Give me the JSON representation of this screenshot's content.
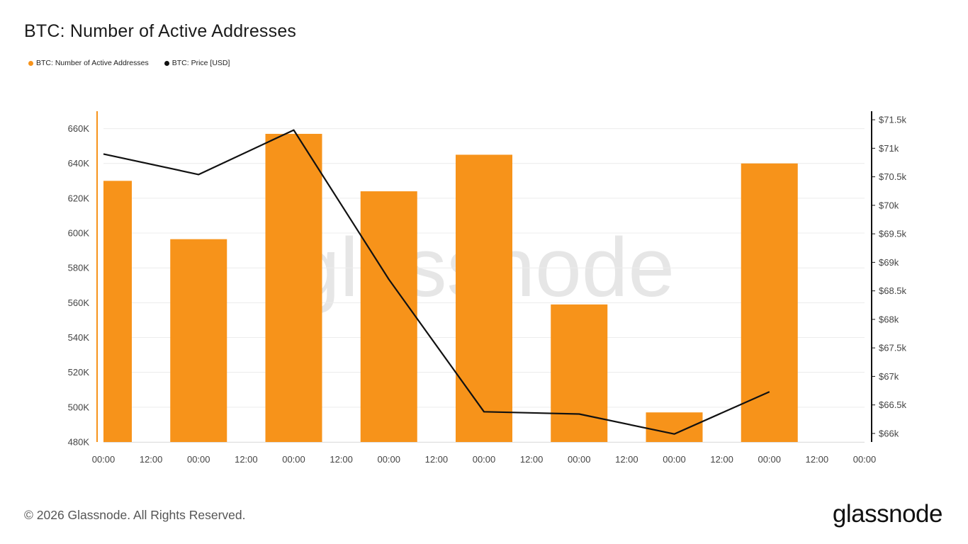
{
  "title": "BTC: Number of Active Addresses",
  "legend": [
    {
      "label": "BTC: Number of Active Addresses",
      "color": "#f7931a"
    },
    {
      "label": "BTC: Price [USD]",
      "color": "#111111"
    }
  ],
  "footer": {
    "copyright": "© 2026 Glassnode. All Rights Reserved.",
    "logo": "glassnode"
  },
  "watermark": "glassnode",
  "colors": {
    "bar": "#f7931a",
    "line": "#111111",
    "grid": "#ececec"
  },
  "chart_data": {
    "type": "bar",
    "x_tick_labels": [
      "00:00",
      "12:00",
      "00:00",
      "12:00",
      "00:00",
      "12:00",
      "00:00",
      "12:00",
      "00:00",
      "12:00",
      "00:00",
      "12:00",
      "00:00",
      "12:00",
      "00:00",
      "12:00",
      "00:00"
    ],
    "y_left_ticks": [
      "480K",
      "500K",
      "520K",
      "540K",
      "560K",
      "580K",
      "600K",
      "620K",
      "640K",
      "660K"
    ],
    "y_right_ticks": [
      "$66k",
      "$66.5k",
      "$67k",
      "$67.5k",
      "$68k",
      "$68.5k",
      "$69k",
      "$69.5k",
      "$70k",
      "$70.5k",
      "$71k",
      "$71.5k"
    ],
    "ylim_left": [
      480000,
      670000
    ],
    "ylim_right": [
      65850,
      71650
    ],
    "xlim": [
      0,
      16
    ],
    "grid": true,
    "series": [
      {
        "name": "BTC: Number of Active Addresses",
        "axis": "left",
        "type": "bar",
        "x": [
          0,
          2,
          4,
          6,
          8,
          10,
          12,
          14
        ],
        "values": [
          630000,
          596500,
          657000,
          624000,
          645000,
          559000,
          497000,
          640000
        ]
      },
      {
        "name": "BTC: Price [USD]",
        "axis": "right",
        "type": "line",
        "x": [
          0,
          2,
          4,
          6,
          8,
          10,
          12,
          14
        ],
        "values": [
          70900,
          70540,
          71320,
          68700,
          66380,
          66340,
          65990,
          66730
        ]
      }
    ]
  }
}
